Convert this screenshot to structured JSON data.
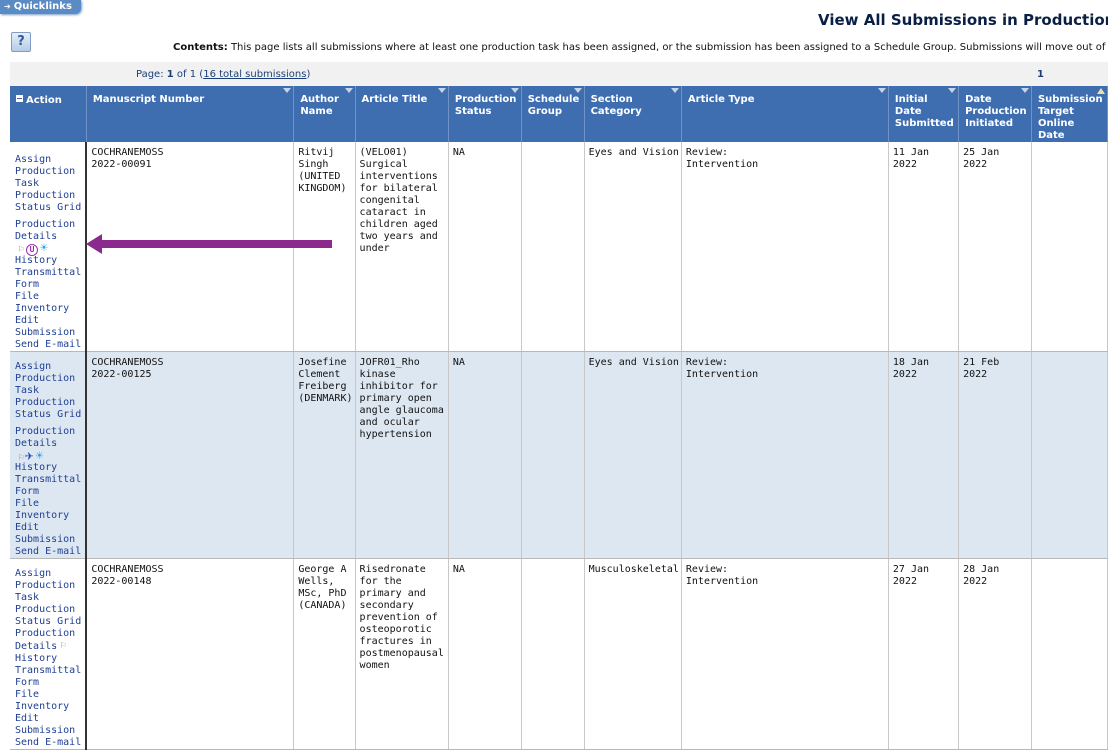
{
  "quicklinks": {
    "label": "Quicklinks",
    "icon": "arrow-right-icon"
  },
  "help": {
    "label": "?",
    "icon": "help-icon"
  },
  "page": {
    "title": "View All Submissions in Production",
    "contents_label": "Contents:",
    "contents_text": "This page lists all submissions where at least one production task has been assigned, or the submission has been assigned to a Schedule Group. Submissions will move out of"
  },
  "pager": {
    "page_label": "Page:",
    "current": "1",
    "of_label": "of 1",
    "total_link": "16 total submissions",
    "page_number": "1"
  },
  "columns": [
    "Action",
    "Manuscript Number",
    "Author Name",
    "Article Title",
    "Production Status",
    "Schedule Group",
    "Section Category",
    "Article Type",
    "Initial Date Submitted",
    "Date Production Initiated",
    "Submission Target Online Date"
  ],
  "actions": {
    "assign": "Assign Production Task",
    "status_grid": "Production Status Grid",
    "details": "Production Details",
    "history": "History",
    "transmittal": "Transmittal Form",
    "inventory": "File Inventory",
    "edit": "Edit Submission",
    "email": "Send E-mail"
  },
  "rows": [
    {
      "manuscript": "COCHRANEMOSS 2022-00091",
      "author": "Ritvij Singh (UNITED KINGDOM)",
      "title": "(VELO01) Surgical interventions for bilateral congenital cataract in children aged two years and under",
      "status": "NA",
      "schedule_group": "",
      "section": "Eyes and Vision",
      "type": "Review: Intervention",
      "initial_date": "11 Jan 2022",
      "production_initiated": "25 Jan 2022",
      "target_date": "",
      "icons": [
        "flag-icon",
        "u-circle-icon",
        "sun-icon"
      ]
    },
    {
      "manuscript": "COCHRANEMOSS 2022-00125",
      "author": "Josefine Clement Freiberg (DENMARK)",
      "title": "JOFR01_Rho kinase inhibitor for primary open angle glaucoma and ocular hypertension",
      "status": "NA",
      "schedule_group": "",
      "section": "Eyes and Vision",
      "type": "Review: Intervention",
      "initial_date": "18 Jan 2022",
      "production_initiated": "21 Feb 2022",
      "target_date": "",
      "icons": [
        "flag-icon",
        "airplane-icon",
        "sun-icon"
      ]
    },
    {
      "manuscript": "COCHRANEMOSS 2022-00148",
      "author": "George A Wells, MSc, PhD (CANADA)",
      "title": "Risedronate for the primary and secondary prevention of osteoporotic fractures in postmenopausal women",
      "status": "NA",
      "schedule_group": "",
      "section": "Musculoskeletal",
      "type": "Review: Intervention",
      "initial_date": "27 Jan 2022",
      "production_initiated": "28 Jan 2022",
      "target_date": "",
      "icons": [
        "flag-icon"
      ]
    }
  ],
  "annotation": {
    "color": "#8b2a8c",
    "icon": "left-arrow-annotation-icon"
  }
}
